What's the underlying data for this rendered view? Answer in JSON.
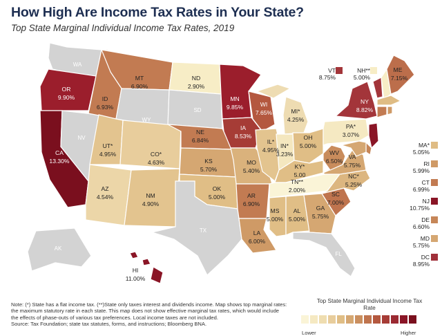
{
  "title": "How High Are Income Tax Rates in Your State?",
  "subtitle": "Top State Marginal Individual Income Tax Rates, 2019",
  "states": {
    "WA": {
      "label": "WA",
      "rate": "",
      "color": "#d3d3d3"
    },
    "OR": {
      "label": "OR",
      "rate": "9.90%",
      "color": "#9b1e2c"
    },
    "CA": {
      "label": "CA",
      "rate": "13.30%",
      "color": "#7a0f1e"
    },
    "NV": {
      "label": "NV",
      "rate": "",
      "color": "#d3d3d3"
    },
    "ID": {
      "label": "ID",
      "rate": "6.93%",
      "color": "#c27b52"
    },
    "MT": {
      "label": "MT",
      "rate": "6.90%",
      "color": "#c27b52"
    },
    "WY": {
      "label": "WY",
      "rate": "",
      "color": "#d3d3d3"
    },
    "UT": {
      "label": "UT*",
      "rate": "4.95%",
      "color": "#e3c48f"
    },
    "AZ": {
      "label": "AZ",
      "rate": "4.54%",
      "color": "#ecd6a8"
    },
    "CO": {
      "label": "CO*",
      "rate": "4.63%",
      "color": "#e8cd9c"
    },
    "NM": {
      "label": "NM",
      "rate": "4.90%",
      "color": "#e3c48f"
    },
    "ND": {
      "label": "ND",
      "rate": "2.90%",
      "color": "#f7edc6"
    },
    "SD": {
      "label": "SD",
      "rate": "",
      "color": "#d3d3d3"
    },
    "NE": {
      "label": "NE",
      "rate": "6.84%",
      "color": "#c27b52"
    },
    "KS": {
      "label": "KS",
      "rate": "5.70%",
      "color": "#d5a772"
    },
    "OK": {
      "label": "OK",
      "rate": "5.00%",
      "color": "#e0be86"
    },
    "TX": {
      "label": "TX",
      "rate": "",
      "color": "#d3d3d3"
    },
    "MN": {
      "label": "MN",
      "rate": "9.85%",
      "color": "#9b1e2c"
    },
    "IA": {
      "label": "IA",
      "rate": "8.53%",
      "color": "#a63c36"
    },
    "MO": {
      "label": "MO",
      "rate": "5.40%",
      "color": "#dab27c"
    },
    "AR": {
      "label": "AR",
      "rate": "6.90%",
      "color": "#c27b52"
    },
    "LA": {
      "label": "LA",
      "rate": "6.00%",
      "color": "#cf9a66"
    },
    "WI": {
      "label": "WI",
      "rate": "7.65%",
      "color": "#b4583f"
    },
    "IL": {
      "label": "IL*",
      "rate": "4.95%",
      "color": "#e3c48f"
    },
    "MI": {
      "label": "MI*",
      "rate": "4.25%",
      "color": "#eedcb2"
    },
    "IN": {
      "label": "IN*",
      "rate": "3.23%",
      "color": "#f4e7bf"
    },
    "OH": {
      "label": "OH",
      "rate": "5.00%",
      "color": "#e0be86"
    },
    "KY": {
      "label": "KY*",
      "rate": "5.00",
      "color": "#e0be86"
    },
    "TN": {
      "label": "TN**",
      "rate": "2.00%",
      "color": "#faf4d7"
    },
    "MS": {
      "label": "MS",
      "rate": "5.00%",
      "color": "#e0be86"
    },
    "AL": {
      "label": "AL",
      "rate": "5.00%",
      "color": "#e0be86"
    },
    "GA": {
      "label": "GA",
      "rate": "5.75%",
      "color": "#d5a772"
    },
    "FL": {
      "label": "FL",
      "rate": "",
      "color": "#d3d3d3"
    },
    "SC": {
      "label": "SC",
      "rate": "7.00%",
      "color": "#bf744e"
    },
    "NC": {
      "label": "NC*",
      "rate": "5.25%",
      "color": "#dcb680"
    },
    "VA": {
      "label": "VA",
      "rate": "5.75%",
      "color": "#d5a772"
    },
    "WV": {
      "label": "WV",
      "rate": "6.50%",
      "color": "#c98c5c"
    },
    "PA": {
      "label": "PA*",
      "rate": "3.07%",
      "color": "#f5e9c2"
    },
    "NY": {
      "label": "NY",
      "rate": "8.82%",
      "color": "#a3353a"
    },
    "NJ": {
      "label": "NJ",
      "rate": "10.75%",
      "color": "#8a1526"
    },
    "ME": {
      "label": "ME",
      "rate": "7.15%",
      "color": "#bc6e4b"
    },
    "VT": {
      "label": "VT",
      "rate": "8.75%",
      "color": "#a3353a"
    },
    "NH": {
      "label": "NH**",
      "rate": "5.00%",
      "color": "#f7edc6"
    },
    "MA": {
      "label": "MA*",
      "rate": "5.05%",
      "color": "#dfbc84"
    },
    "CT": {
      "label": "CT",
      "rate": "6.99%",
      "color": "#c27b52"
    },
    "RI": {
      "label": "RI",
      "rate": "5.99%",
      "color": "#cf9a66"
    },
    "DE": {
      "label": "DE",
      "rate": "6.60%",
      "color": "#c68658"
    },
    "MD": {
      "label": "MD",
      "rate": "5.75%",
      "color": "#d5a772"
    },
    "DC": {
      "label": "DC",
      "rate": "8.95%",
      "color": "#a0303a"
    },
    "AK": {
      "label": "AK",
      "rate": "",
      "color": "#d3d3d3"
    },
    "HI": {
      "label": "HI",
      "rate": "11.00%",
      "color": "#8a1526"
    }
  },
  "note": "Note: (*) State has a flat income tax. (**)State only taxes interest and dividends income. Map shows top marginal rates: the maximum statutory rate in each state. This map does not show effective marginal tax rates, which would include the effects of phase-outs of various tax preferences. Local income taxes are not included.",
  "source": "Source: Tax Foundation; state tax statutes, forms, and instructions; Bloomberg BNA.",
  "legend": {
    "title": "Top State Marginal Individual Income Tax Rate",
    "lower": "Lower",
    "higher": "Higher",
    "colors": [
      "#faf4d7",
      "#f5e9c2",
      "#efddb0",
      "#e8cd9c",
      "#e0be86",
      "#d5a772",
      "#ca8f5f",
      "#bf744e",
      "#b4583f",
      "#a63c36",
      "#9b2a32",
      "#8a1526",
      "#7a0f1e"
    ]
  }
}
